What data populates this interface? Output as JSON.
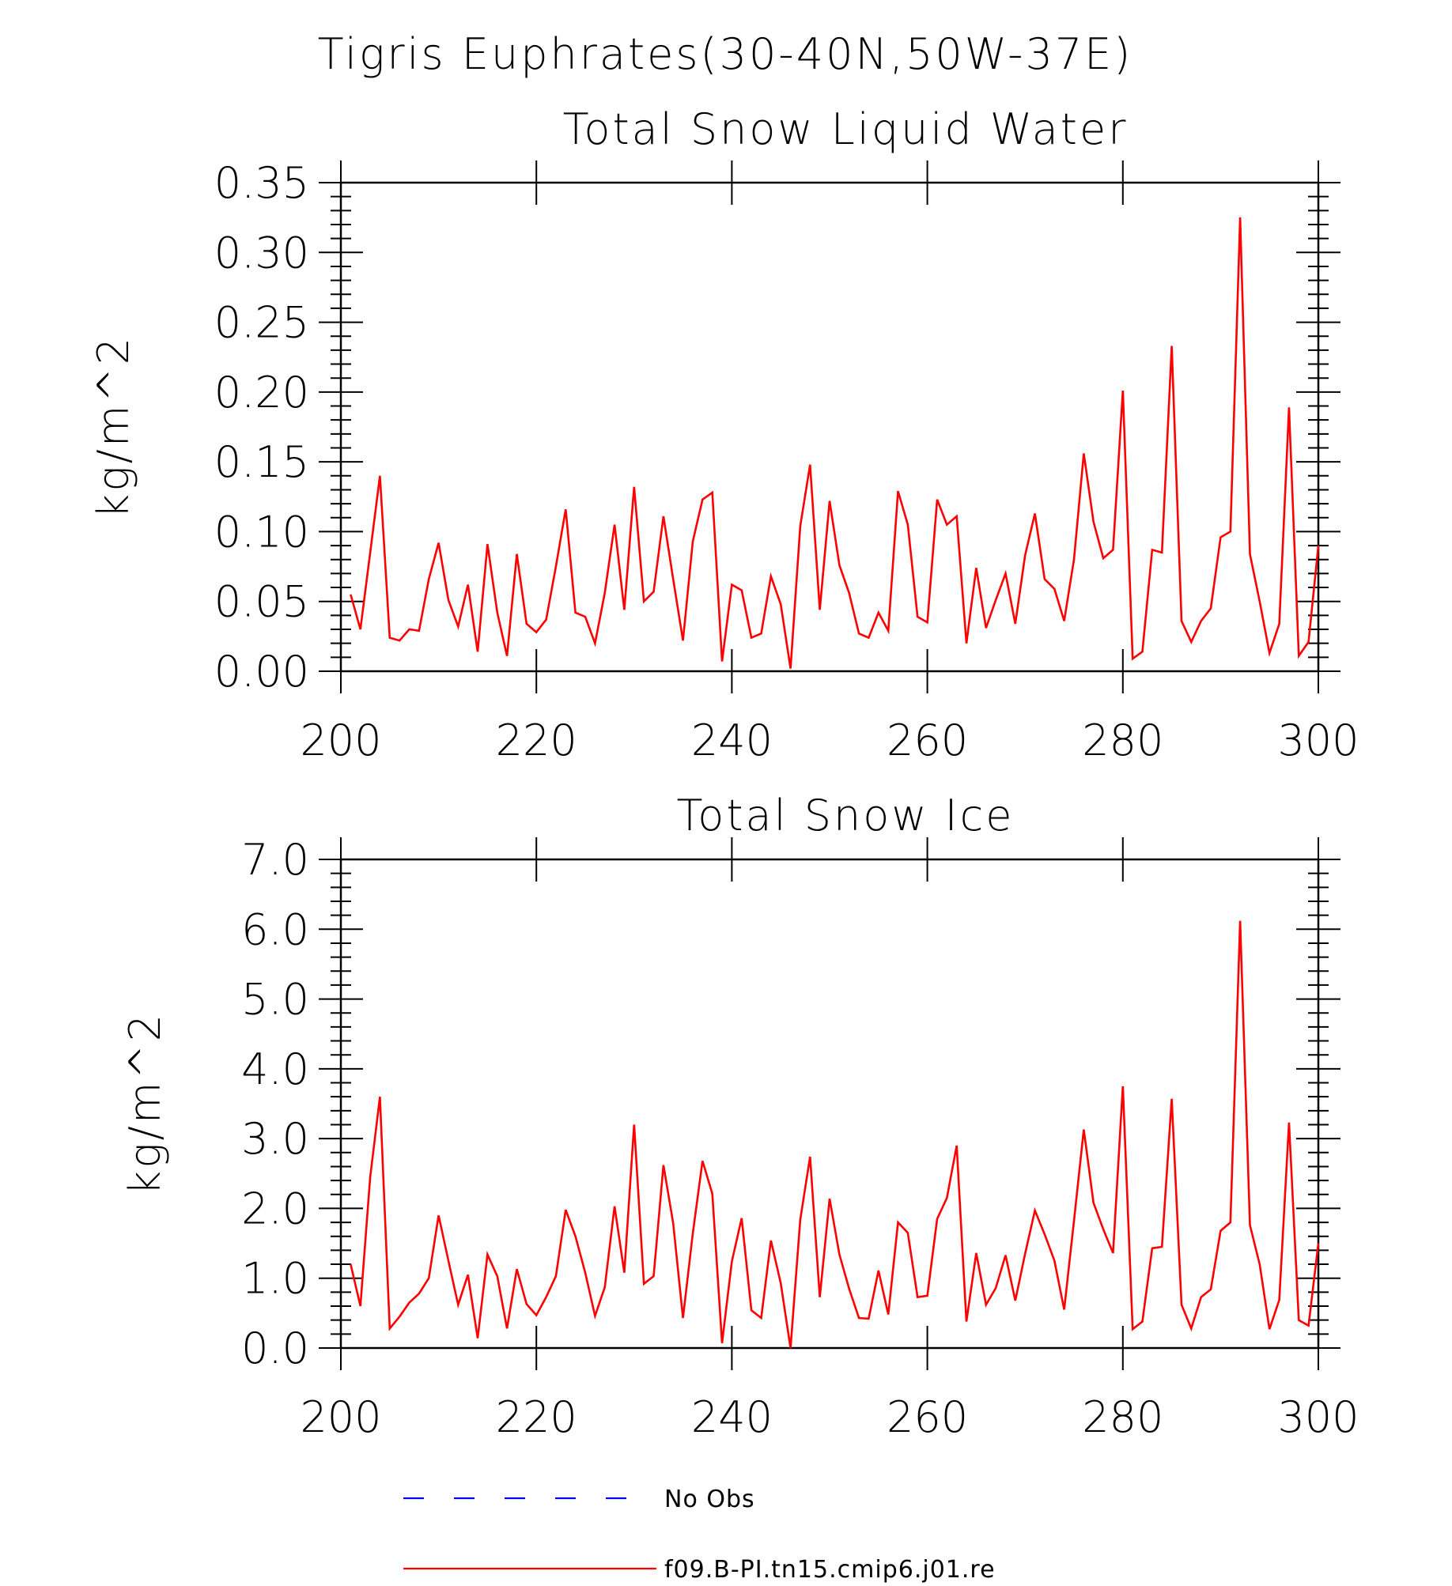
{
  "main_title": "Tigris Euphrates(30-40N,50W-37E)",
  "legend": [
    {
      "label": "No Obs",
      "color": "#0000ff",
      "dash": true
    },
    {
      "label": "f09.B-PI.tn15.cmip6.j01.re",
      "color": "#ff0000",
      "dash": false
    }
  ],
  "chart_data": [
    {
      "type": "line",
      "title": "Total Snow Liquid Water",
      "xlabel": "",
      "ylabel": "kg/m^2",
      "xlim": [
        200,
        300
      ],
      "ylim": [
        0,
        0.35
      ],
      "x_ticks": [
        200,
        220,
        240,
        260,
        280,
        300
      ],
      "y_ticks": [
        "0.00",
        "0.05",
        "0.10",
        "0.15",
        "0.20",
        "0.25",
        "0.30",
        "0.35"
      ],
      "y_tick_values": [
        0,
        0.05,
        0.1,
        0.15,
        0.2,
        0.25,
        0.3,
        0.35
      ],
      "series": [
        {
          "name": "f09.B-PI.tn15.cmip6.j01.re",
          "color": "#ff0000",
          "x_start": 201,
          "values": [
            0.055,
            0.03,
            0.085,
            0.14,
            0.024,
            0.022,
            0.03,
            0.029,
            0.066,
            0.092,
            0.051,
            0.032,
            0.062,
            0.014,
            0.091,
            0.042,
            0.011,
            0.084,
            0.034,
            0.028,
            0.037,
            0.075,
            0.116,
            0.042,
            0.039,
            0.02,
            0.056,
            0.105,
            0.044,
            0.132,
            0.05,
            0.057,
            0.111,
            0.066,
            0.022,
            0.093,
            0.123,
            0.128,
            0.007,
            0.062,
            0.058,
            0.024,
            0.027,
            0.068,
            0.048,
            0.002,
            0.104,
            0.148,
            0.044,
            0.122,
            0.076,
            0.056,
            0.027,
            0.024,
            0.042,
            0.029,
            0.129,
            0.105,
            0.039,
            0.035,
            0.123,
            0.105,
            0.111,
            0.02,
            0.074,
            0.031,
            0.051,
            0.07,
            0.034,
            0.083,
            0.113,
            0.066,
            0.059,
            0.036,
            0.08,
            0.156,
            0.107,
            0.081,
            0.087,
            0.201,
            0.009,
            0.014,
            0.087,
            0.085,
            0.233,
            0.036,
            0.021,
            0.036,
            0.045,
            0.096,
            0.1,
            0.325,
            0.084,
            0.05,
            0.013,
            0.034,
            0.189,
            0.011,
            0.021,
            0.09
          ]
        }
      ]
    },
    {
      "type": "line",
      "title": "Total Snow Ice",
      "xlabel": "",
      "ylabel": "kg/m^2",
      "xlim": [
        200,
        300
      ],
      "ylim": [
        0,
        7
      ],
      "x_ticks": [
        200,
        220,
        240,
        260,
        280,
        300
      ],
      "y_ticks": [
        "0.0",
        "1.0",
        "2.0",
        "3.0",
        "4.0",
        "5.0",
        "6.0",
        "7.0"
      ],
      "y_tick_values": [
        0,
        1,
        2,
        3,
        4,
        5,
        6,
        7
      ],
      "series": [
        {
          "name": "f09.B-PI.tn15.cmip6.j01.re",
          "color": "#ff0000",
          "x_start": 201,
          "values": [
            1.2,
            0.6,
            2.45,
            3.6,
            0.28,
            0.45,
            0.65,
            0.78,
            1.0,
            1.9,
            1.25,
            0.62,
            1.05,
            0.14,
            1.34,
            1.03,
            0.28,
            1.13,
            0.63,
            0.47,
            0.73,
            1.03,
            1.98,
            1.6,
            1.08,
            0.46,
            0.87,
            2.03,
            1.08,
            3.2,
            0.92,
            1.03,
            2.62,
            1.79,
            0.43,
            1.64,
            2.68,
            2.21,
            0.07,
            1.24,
            1.86,
            0.54,
            0.43,
            1.54,
            0.93,
            0.0,
            1.84,
            2.74,
            0.73,
            2.14,
            1.34,
            0.85,
            0.43,
            0.42,
            1.11,
            0.48,
            1.8,
            1.65,
            0.73,
            0.75,
            1.85,
            2.15,
            2.9,
            0.38,
            1.36,
            0.62,
            0.86,
            1.33,
            0.68,
            1.35,
            1.97,
            1.63,
            1.25,
            0.55,
            1.82,
            3.13,
            2.08,
            1.7,
            1.36,
            3.75,
            0.27,
            0.38,
            1.43,
            1.45,
            3.57,
            0.62,
            0.28,
            0.73,
            0.84,
            1.68,
            1.8,
            6.12,
            1.76,
            1.2,
            0.27,
            0.69,
            3.23,
            0.4,
            0.32,
            1.5
          ]
        }
      ]
    }
  ]
}
